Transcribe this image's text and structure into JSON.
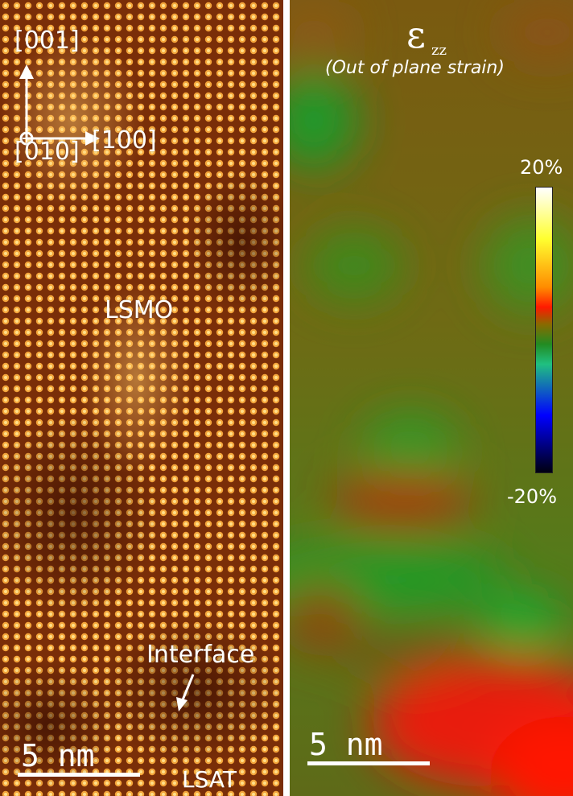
{
  "hrtem_panel": {
    "axis_001": "[001]",
    "axis_100": "[100]",
    "axis_010": "[010]",
    "film_label": "LSMO",
    "interface_label": "Interface",
    "substrate_label": "LSAT",
    "scale_bar_label": "5  nm"
  },
  "strain_panel": {
    "symbol": "ε",
    "subscript": "zz",
    "description": "(Out of plane strain)",
    "colorbar_max": "20%",
    "colorbar_min": "-20%",
    "scale_bar_label": "5  nm"
  }
}
